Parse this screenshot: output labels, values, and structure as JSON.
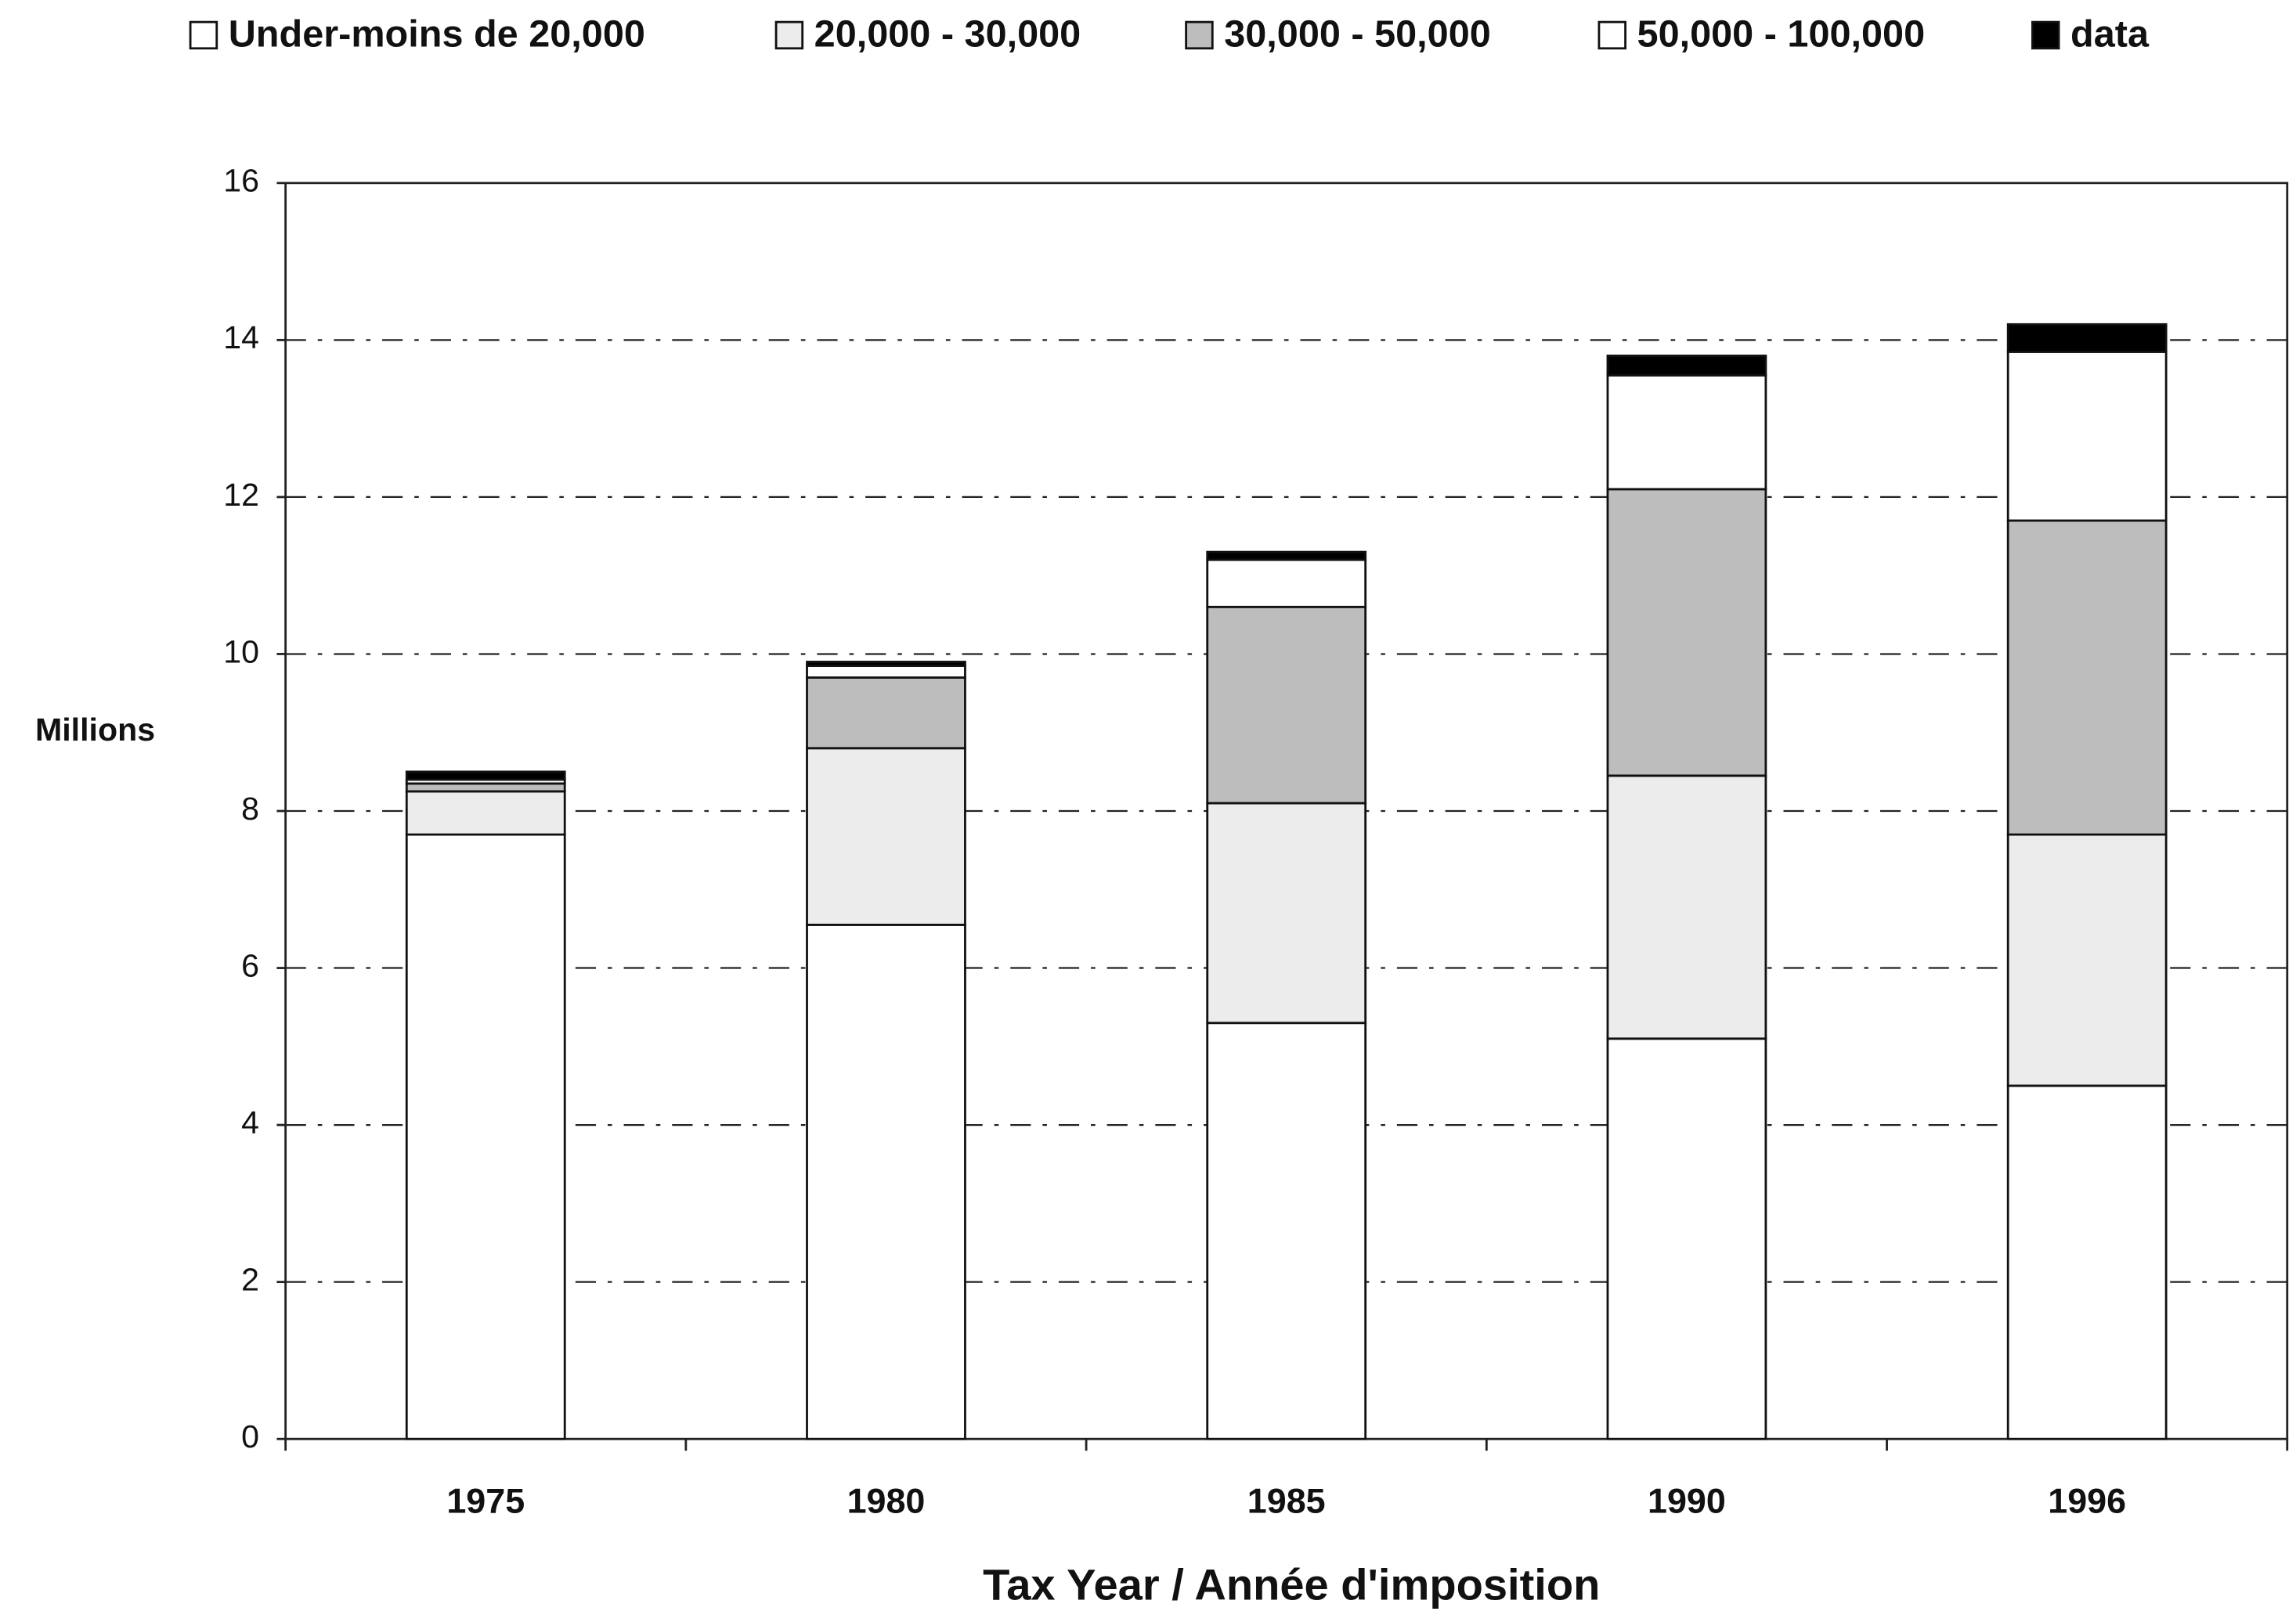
{
  "chart_data": {
    "type": "stacked_bar",
    "x_label": "Tax Year / Année d'imposition",
    "y_label": "Millions",
    "categories": [
      "1975",
      "1980",
      "1985",
      "1990",
      "1996"
    ],
    "series": [
      {
        "name": "Under-moins de 20,000",
        "color": "#ffffff",
        "values": [
          7.7,
          6.55,
          5.3,
          5.1,
          4.5
        ]
      },
      {
        "name": "20,000 - 30,000",
        "color": "#ececec",
        "values": [
          0.55,
          2.25,
          2.8,
          3.35,
          3.2
        ]
      },
      {
        "name": "30,000 - 50,000",
        "color": "#bdbdbd",
        "values": [
          0.1,
          0.9,
          2.5,
          3.65,
          4.0
        ]
      },
      {
        "name": "50,000 - 100,000",
        "color": "#ffffff",
        "values": [
          0.05,
          0.15,
          0.6,
          1.45,
          2.15
        ]
      },
      {
        "name": "data",
        "color": "#000000",
        "values": [
          0.1,
          0.05,
          0.1,
          0.25,
          0.35
        ]
      }
    ],
    "ylim": [
      0,
      16
    ],
    "yticks": [
      0,
      2,
      4,
      6,
      8,
      10,
      12,
      14,
      16
    ],
    "grid": true,
    "legend": "top"
  }
}
